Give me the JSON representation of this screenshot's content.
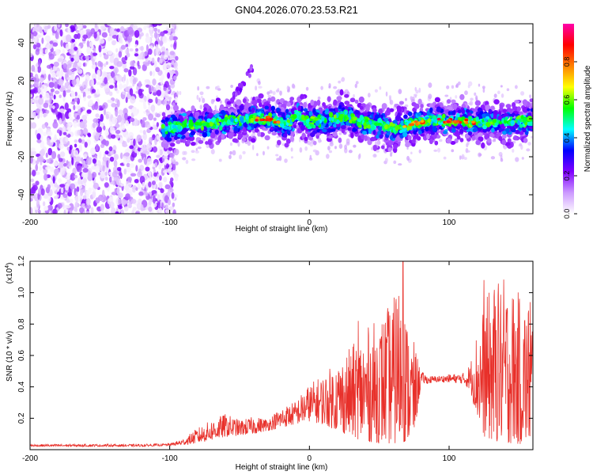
{
  "title": "GN04.2026.070.23.53.R21",
  "chart_data": [
    {
      "type": "heatmap",
      "xlabel": "Height of straight line (km)",
      "ylabel": "Frequency (Hz)",
      "xlim": [
        -200,
        160
      ],
      "ylim": [
        -50,
        50
      ],
      "xticks": [
        -200,
        -100,
        0,
        100
      ],
      "yticks": [
        -40,
        -20,
        0,
        20,
        40
      ],
      "colorbar": {
        "label": "Normalized spectral amplitude",
        "range": [
          0,
          1
        ],
        "ticks": [
          0.0,
          0.2,
          0.4,
          0.6,
          0.8
        ],
        "colors": [
          "#ffffff",
          "#cc99ff",
          "#7f00ff",
          "#0000ff",
          "#00ffff",
          "#00ff00",
          "#ffff00",
          "#ff8000",
          "#ff0000",
          "#ff00aa"
        ]
      },
      "features": {
        "noise_region_x": [
          -200,
          -95
        ],
        "noise_amplitude": [
          0.0,
          0.25
        ],
        "signal_band_x": [
          -105,
          160
        ],
        "signal_band_center_hz": [
          [
            -105,
            -5
          ],
          [
            -90,
            -4
          ],
          [
            -70,
            -3
          ],
          [
            -55,
            -1
          ],
          [
            -40,
            0
          ],
          [
            -30,
            0
          ],
          [
            -20,
            -2
          ],
          [
            -15,
            -3
          ],
          [
            -10,
            2
          ],
          [
            -5,
            1
          ],
          [
            0,
            -2
          ],
          [
            10,
            -1
          ],
          [
            20,
            0
          ],
          [
            25,
            2
          ],
          [
            30,
            0
          ],
          [
            40,
            -2
          ],
          [
            50,
            -3
          ],
          [
            60,
            -5
          ],
          [
            70,
            -3
          ],
          [
            80,
            -2
          ],
          [
            90,
            -1
          ],
          [
            100,
            -1
          ],
          [
            110,
            -1
          ],
          [
            120,
            -2
          ],
          [
            140,
            -2
          ],
          [
            160,
            -1
          ]
        ],
        "peak_amplitude_x": [
          [
            -30,
            0.95
          ],
          [
            75,
            0.9
          ],
          [
            100,
            0.95
          ],
          [
            110,
            0.9
          ]
        ],
        "ghost_branch": [
          [
            -55,
            10
          ],
          [
            -48,
            18
          ],
          [
            -40,
            28
          ]
        ]
      }
    },
    {
      "type": "line",
      "xlabel": "Height of straight line (km)",
      "ylabel": "SNR (10 * v/v)",
      "y_multiplier": "(x10",
      "y_multiplier_exp": "4",
      "y_multiplier_close": ")",
      "xlim": [
        -200,
        160
      ],
      "ylim": [
        0,
        12000
      ],
      "xticks": [
        -200,
        -100,
        0,
        100
      ],
      "yticks": [
        2000,
        4000,
        6000,
        8000,
        10000,
        12000
      ],
      "ytick_labels": [
        "0.2",
        "0.4",
        "0.6",
        "0.8",
        "1.0",
        "1.2"
      ],
      "color": "#e8302a",
      "envelope": {
        "x": [
          -200,
          -120,
          -100,
          -90,
          -80,
          -70,
          -60,
          -50,
          -40,
          -30,
          -20,
          -10,
          0,
          10,
          20,
          30,
          40,
          50,
          60,
          65,
          70,
          75,
          80,
          85,
          90,
          100,
          110,
          115,
          120,
          125,
          130,
          140,
          150,
          160
        ],
        "lower": [
          200,
          200,
          250,
          300,
          400,
          600,
          800,
          900,
          1000,
          1200,
          1400,
          1600,
          1800,
          1600,
          1200,
          800,
          500,
          400,
          300,
          300,
          500,
          800,
          4200,
          4200,
          4300,
          4300,
          4200,
          3800,
          2000,
          800,
          500,
          400,
          300,
          300
        ],
        "upper": [
          350,
          350,
          400,
          700,
          1400,
          1900,
          2300,
          1900,
          2100,
          2000,
          2700,
          3100,
          4200,
          4800,
          5700,
          6600,
          7700,
          8400,
          9600,
          11000,
          8200,
          6800,
          5000,
          4700,
          4700,
          4800,
          4900,
          5500,
          7700,
          9200,
          10500,
          11000,
          10000,
          9400
        ]
      },
      "peaks": [
        [
          35,
          8200
        ],
        [
          62,
          9600
        ],
        [
          67,
          12000
        ],
        [
          125,
          10800
        ],
        [
          135,
          9800
        ],
        [
          158,
          9400
        ]
      ]
    }
  ]
}
